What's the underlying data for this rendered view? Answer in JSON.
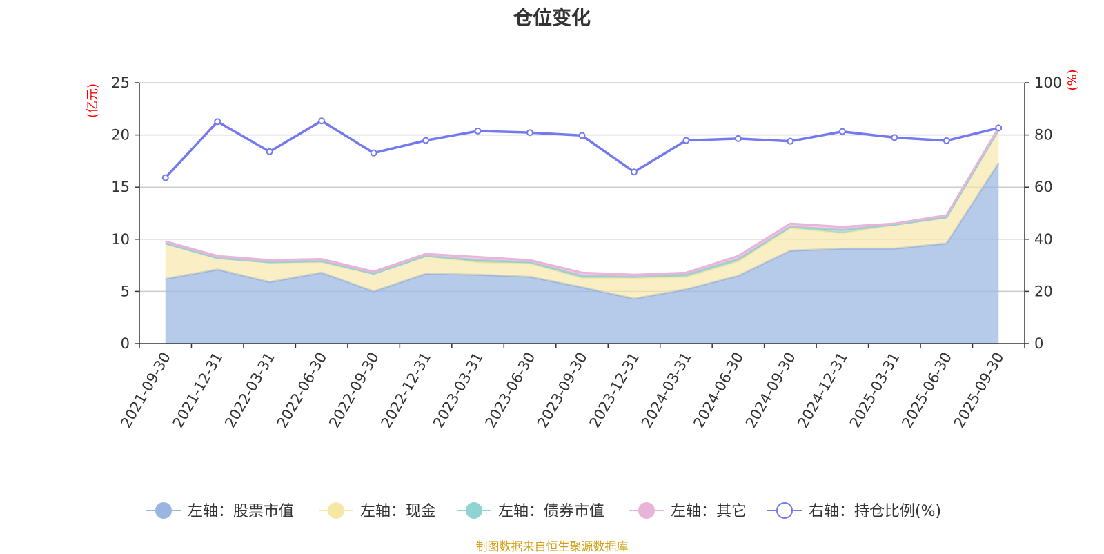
{
  "title": "仓位变化",
  "footer": "制图数据来自恒生聚源数据库",
  "colors": {
    "stock": "#9ab6e0",
    "cash": "#f7e7a4",
    "bond": "#8fd3d4",
    "other": "#e8b5d9",
    "ratio": "#7479ef",
    "unit": "#ff0000",
    "axis": "#333333",
    "grid": "#cccccc"
  },
  "chart_data": {
    "type": "area",
    "title": "仓位变化",
    "x": [
      "2021-09-30",
      "2021-12-31",
      "2022-03-31",
      "2022-06-30",
      "2022-09-30",
      "2022-12-31",
      "2023-03-31",
      "2023-06-30",
      "2023-09-30",
      "2023-12-31",
      "2024-03-31",
      "2024-06-30",
      "2024-09-30",
      "2024-12-31",
      "2025-03-31",
      "2025-06-30",
      "2025-09-30"
    ],
    "left_axis": {
      "unit": "(亿元)",
      "ylim": [
        0,
        25
      ],
      "ticks": [
        "0",
        "5",
        "10",
        "15",
        "20",
        "25"
      ]
    },
    "right_axis": {
      "unit": "(%)",
      "ylim": [
        0,
        100
      ],
      "ticks": [
        "0",
        "20",
        "40",
        "60",
        "80",
        "100"
      ]
    },
    "stacked": true,
    "series": [
      {
        "name": "左轴：股票市值",
        "axis": "left",
        "type": "area",
        "values": [
          6.2,
          7.1,
          5.9,
          6.8,
          5.0,
          6.7,
          6.6,
          6.4,
          5.4,
          4.3,
          5.2,
          6.5,
          8.9,
          9.1,
          9.1,
          9.6,
          17.3
        ]
      },
      {
        "name": "左轴：现金",
        "axis": "left",
        "type": "area",
        "values": [
          3.4,
          1.1,
          1.9,
          1.0,
          1.7,
          1.7,
          1.2,
          1.3,
          0.9,
          2.0,
          1.2,
          1.4,
          2.2,
          1.5,
          2.3,
          2.5,
          3.2
        ]
      },
      {
        "name": "左轴：债券市值",
        "axis": "left",
        "type": "area",
        "values": [
          0.0,
          0.0,
          0.0,
          0.1,
          0.0,
          0.0,
          0.2,
          0.1,
          0.2,
          0.1,
          0.2,
          0.2,
          0.1,
          0.3,
          0.0,
          0.0,
          0.0
        ]
      },
      {
        "name": "左轴：其它",
        "axis": "left",
        "type": "area",
        "values": [
          0.2,
          0.2,
          0.2,
          0.2,
          0.2,
          0.2,
          0.3,
          0.2,
          0.3,
          0.2,
          0.2,
          0.3,
          0.3,
          0.3,
          0.1,
          0.2,
          0.2
        ]
      },
      {
        "name": "右轴：持仓比例(%)",
        "axis": "right",
        "type": "line",
        "values": [
          63.6,
          85.1,
          73.6,
          85.4,
          73.1,
          77.9,
          81.5,
          80.9,
          79.8,
          65.8,
          77.9,
          78.6,
          77.6,
          81.3,
          79.0,
          77.8,
          82.7
        ]
      }
    ],
    "grid": true,
    "legend_position": "bottom"
  }
}
